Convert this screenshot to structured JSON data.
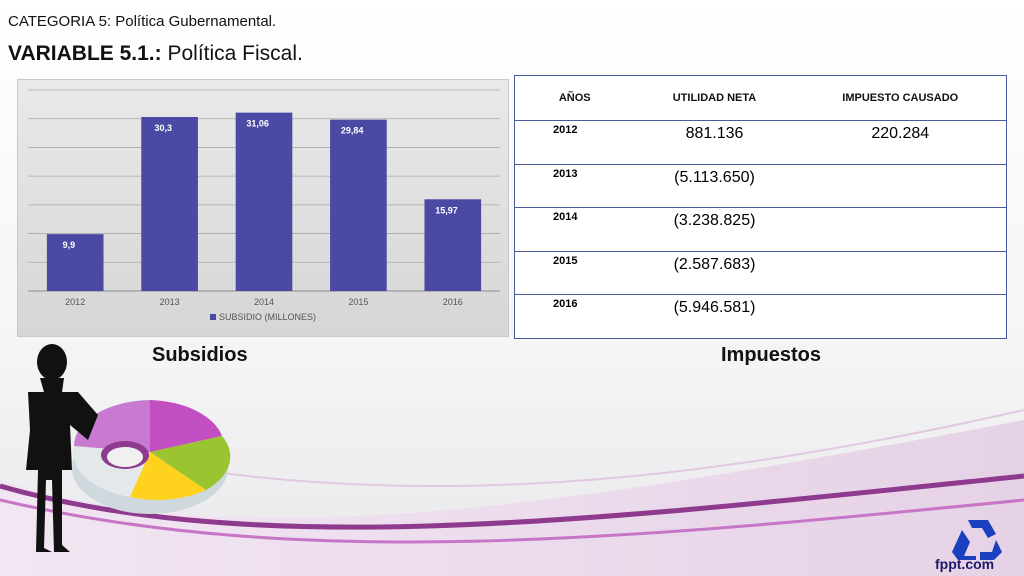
{
  "header": {
    "category": "CATEGORIA 5: Política Gubernamental.",
    "variable_prefix": "VARIABLE 5.1.:",
    "variable_name": " Política Fiscal."
  },
  "chart_data": {
    "type": "bar",
    "categories": [
      "2012",
      "2013",
      "2014",
      "2015",
      "2016"
    ],
    "series": [
      {
        "name": "SUBSIDIO (MILLONES)",
        "values": [
          9.9,
          30.3,
          31.06,
          29.84,
          15.97
        ]
      }
    ],
    "data_labels": [
      "9,9",
      "30,3",
      "31,06",
      "29,84",
      "15,97"
    ],
    "ylim": [
      0,
      35
    ],
    "gridlines": true,
    "legend_position": "bottom",
    "bar_color": "#4a4aa4"
  },
  "table": {
    "headers": [
      "AÑOS",
      "UTILIDAD NETA",
      "IMPUESTO CAUSADO"
    ],
    "rows": [
      {
        "year": "2012",
        "utilidad": "881.136",
        "impuesto": "220.284"
      },
      {
        "year": "2013",
        "utilidad": "(5.113.650)",
        "impuesto": ""
      },
      {
        "year": "2014",
        "utilidad": "(3.238.825)",
        "impuesto": ""
      },
      {
        "year": "2015",
        "utilidad": "(2.587.683)",
        "impuesto": ""
      },
      {
        "year": "2016",
        "utilidad": "(5.946.581)",
        "impuesto": ""
      }
    ],
    "border_color": "#4a5a9c"
  },
  "labels": {
    "subsidios": "Subsidios",
    "impuestos": "Impuestos"
  },
  "branding": {
    "logo_text": "fppt.com",
    "logo_icon": "recycle-icon"
  },
  "decorations": {
    "figure": "businesswoman-silhouette",
    "pie": "3d-donut-chart-icon",
    "wave_colors": [
      "#8e3a8e",
      "#c776c7"
    ]
  }
}
